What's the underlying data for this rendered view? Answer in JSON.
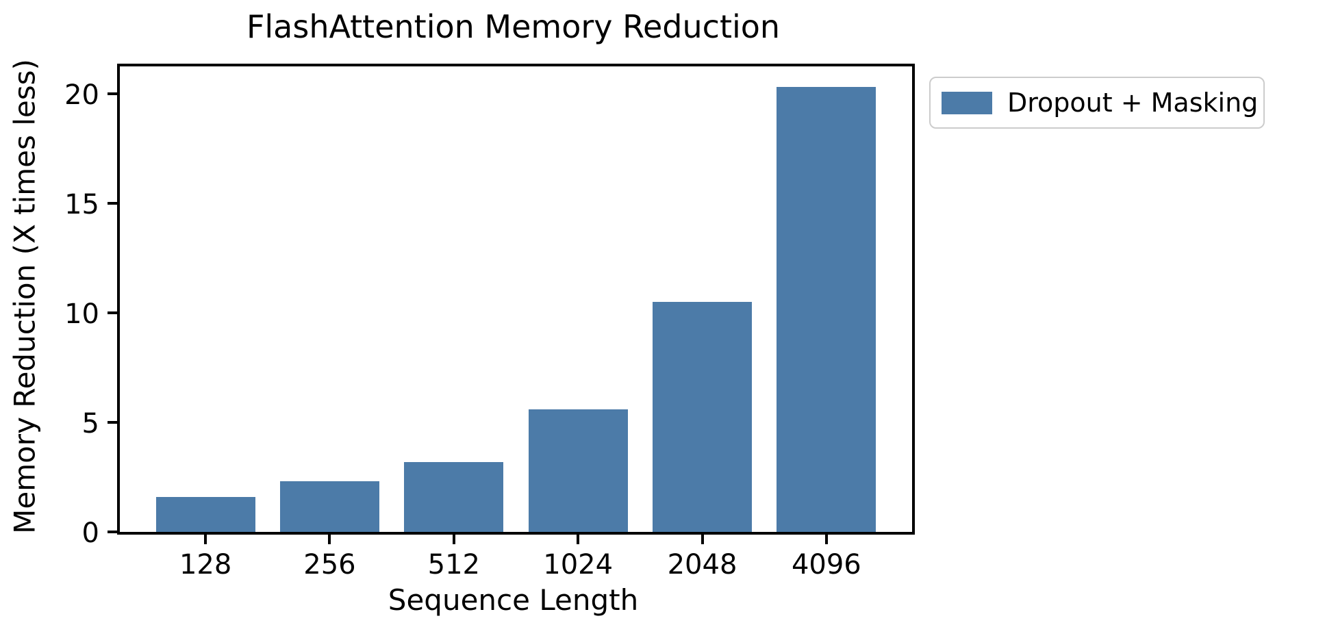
{
  "chart_data": {
    "type": "bar",
    "title": "FlashAttention Memory Reduction",
    "xlabel": "Sequence Length",
    "ylabel": "Memory Reduction (X times less)",
    "categories": [
      "128",
      "256",
      "512",
      "1024",
      "2048",
      "4096"
    ],
    "series": [
      {
        "name": "Dropout + Masking",
        "color": "#4C7BA8",
        "values": [
          1.6,
          2.3,
          3.2,
          5.6,
          10.5,
          20.3
        ]
      }
    ],
    "ylim": [
      0,
      21.25
    ],
    "yticks": [
      0,
      5,
      10,
      15,
      20
    ],
    "grid": false,
    "legend": {
      "label": "Dropout + Masking",
      "swatch_color": "#4C7BA8",
      "position": "outside-upper-right"
    },
    "axis_color": "#000000",
    "background_color": "#ffffff"
  }
}
